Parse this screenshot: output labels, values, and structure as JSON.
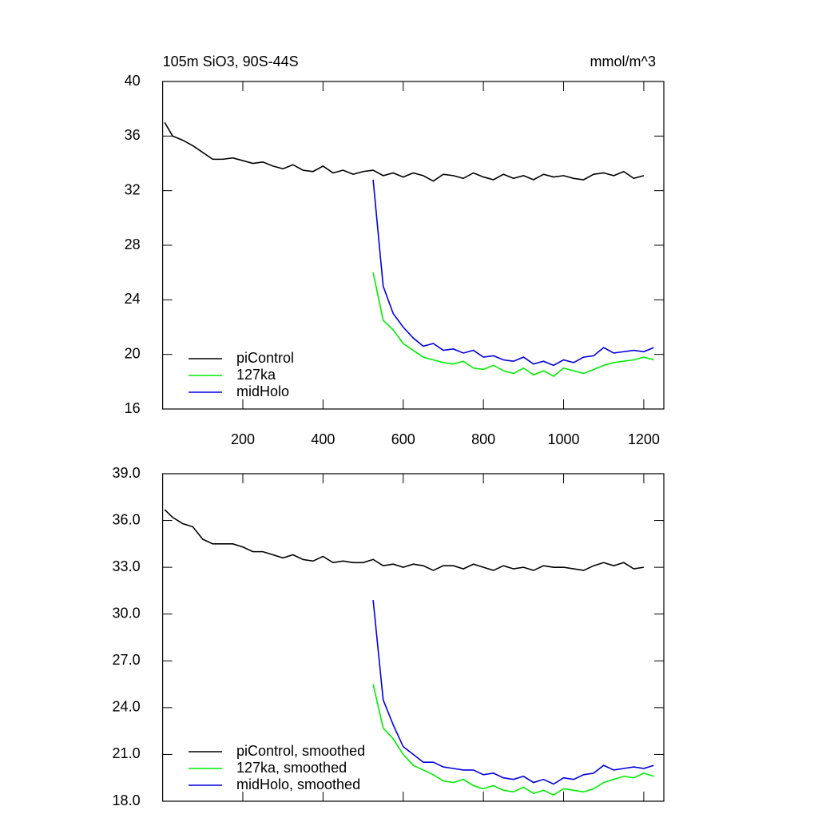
{
  "chart_data": [
    {
      "type": "line",
      "title": "105m SiO3, 90S-44S",
      "units": "mmol/m^3",
      "x": [
        5,
        25,
        50,
        75,
        100,
        125,
        150,
        175,
        200,
        225,
        250,
        275,
        300,
        325,
        350,
        375,
        400,
        425,
        450,
        475,
        500,
        525,
        550,
        575,
        600,
        625,
        650,
        675,
        700,
        725,
        750,
        775,
        800,
        825,
        850,
        875,
        900,
        925,
        950,
        975,
        1000,
        1025,
        1050,
        1075,
        1100,
        1125,
        1150,
        1175,
        1200,
        1225
      ],
      "xlim": [
        0,
        1250
      ],
      "xticks": [
        200,
        400,
        600,
        800,
        1000,
        1200
      ],
      "ylim": [
        16,
        40
      ],
      "yticks": [
        16,
        20,
        24,
        28,
        32,
        36,
        40
      ],
      "series": [
        {
          "name": "piControl",
          "color": "#000000",
          "values": [
            37,
            36,
            35.7,
            35.3,
            34.8,
            34.3,
            34.3,
            34.4,
            34.2,
            34,
            34.1,
            33.8,
            33.6,
            33.9,
            33.5,
            33.4,
            33.8,
            33.3,
            33.5,
            33.2,
            33.4,
            33.5,
            33.1,
            33.3,
            33,
            33.3,
            33.1,
            32.7,
            33.2,
            33.1,
            32.9,
            33.3,
            33,
            32.8,
            33.2,
            32.9,
            33.1,
            32.8,
            33.2,
            33,
            33.1,
            32.9,
            32.8,
            33.2,
            33.3,
            33.1,
            33.4,
            32.9,
            33.1,
            null
          ]
        },
        {
          "name": "127ka",
          "color": "#00ee00",
          "values": [
            null,
            null,
            null,
            null,
            null,
            null,
            null,
            null,
            null,
            null,
            null,
            null,
            null,
            null,
            null,
            null,
            null,
            null,
            null,
            null,
            null,
            26,
            22.5,
            21.8,
            20.8,
            20.3,
            19.8,
            19.6,
            19.4,
            19.3,
            19.5,
            19,
            18.9,
            19.2,
            18.8,
            18.6,
            19,
            18.5,
            18.8,
            18.4,
            19,
            18.8,
            18.6,
            18.9,
            19.2,
            19.4,
            19.5,
            19.6,
            19.8,
            19.6
          ]
        },
        {
          "name": "midHolo",
          "color": "#0000dd",
          "values": [
            null,
            null,
            null,
            null,
            null,
            null,
            null,
            null,
            null,
            null,
            null,
            null,
            null,
            null,
            null,
            null,
            null,
            null,
            null,
            null,
            null,
            32.8,
            25,
            23,
            22,
            21.2,
            20.6,
            20.8,
            20.3,
            20.4,
            20.1,
            20.3,
            19.8,
            19.9,
            19.6,
            19.5,
            19.8,
            19.3,
            19.5,
            19.2,
            19.6,
            19.4,
            19.8,
            19.9,
            20.5,
            20.1,
            20.2,
            20.3,
            20.2,
            20.5
          ]
        }
      ]
    },
    {
      "type": "line",
      "x": [
        5,
        25,
        50,
        75,
        100,
        125,
        150,
        175,
        200,
        225,
        250,
        275,
        300,
        325,
        350,
        375,
        400,
        425,
        450,
        475,
        500,
        525,
        550,
        575,
        600,
        625,
        650,
        675,
        700,
        725,
        750,
        775,
        800,
        825,
        850,
        875,
        900,
        925,
        950,
        975,
        1000,
        1025,
        1050,
        1075,
        1100,
        1125,
        1150,
        1175,
        1200,
        1225
      ],
      "xlim": [
        0,
        1250
      ],
      "xticks": [
        200,
        400,
        600,
        800,
        1000,
        1200
      ],
      "ylim": [
        18,
        39
      ],
      "yticks": [
        {
          "value": 18,
          "label": "18.0"
        },
        {
          "value": 21,
          "label": "21.0"
        },
        {
          "value": 24,
          "label": "24.0"
        },
        {
          "value": 27,
          "label": "27.0"
        },
        {
          "value": 30,
          "label": "30.0"
        },
        {
          "value": 33,
          "label": "33.0"
        },
        {
          "value": 36,
          "label": "36.0"
        },
        {
          "value": 39,
          "label": "39.0"
        }
      ],
      "series": [
        {
          "name": "piControl, smoothed",
          "color": "#000000",
          "values": [
            36.7,
            36.2,
            35.8,
            35.6,
            34.8,
            34.5,
            34.5,
            34.5,
            34.3,
            34,
            34,
            33.8,
            33.6,
            33.8,
            33.5,
            33.4,
            33.7,
            33.3,
            33.4,
            33.3,
            33.3,
            33.5,
            33.1,
            33.2,
            33,
            33.2,
            33.1,
            32.8,
            33.1,
            33.1,
            32.9,
            33.2,
            33,
            32.8,
            33.1,
            32.9,
            33,
            32.8,
            33.1,
            33,
            33,
            32.9,
            32.8,
            33.1,
            33.3,
            33.1,
            33.3,
            32.9,
            33,
            null
          ]
        },
        {
          "name": "127ka, smoothed",
          "color": "#00ee00",
          "values": [
            null,
            null,
            null,
            null,
            null,
            null,
            null,
            null,
            null,
            null,
            null,
            null,
            null,
            null,
            null,
            null,
            null,
            null,
            null,
            null,
            null,
            25.5,
            22.7,
            22,
            21,
            20.3,
            20,
            19.7,
            19.3,
            19.2,
            19.4,
            19,
            18.8,
            19,
            18.7,
            18.6,
            18.9,
            18.5,
            18.7,
            18.4,
            18.8,
            18.7,
            18.6,
            18.8,
            19.2,
            19.4,
            19.6,
            19.5,
            19.8,
            19.6
          ]
        },
        {
          "name": "midHolo, smoothed",
          "color": "#0000dd",
          "values": [
            null,
            null,
            null,
            null,
            null,
            null,
            null,
            null,
            null,
            null,
            null,
            null,
            null,
            null,
            null,
            null,
            null,
            null,
            null,
            null,
            null,
            30.9,
            24.5,
            22.9,
            21.5,
            21,
            20.5,
            20.5,
            20.2,
            20.1,
            20,
            20,
            19.7,
            19.8,
            19.5,
            19.4,
            19.6,
            19.2,
            19.4,
            19.1,
            19.5,
            19.4,
            19.7,
            19.8,
            20.3,
            20,
            20.1,
            20.2,
            20.1,
            20.3
          ]
        }
      ]
    }
  ]
}
